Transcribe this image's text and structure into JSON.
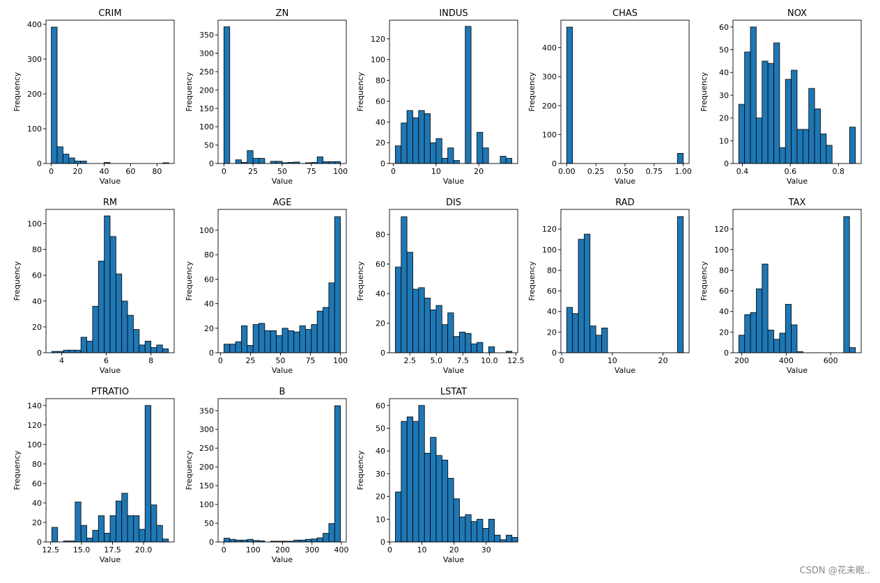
{
  "figure": {
    "bar_color": "#1f77b4",
    "edge_color": "#000000",
    "watermark": "CSDN @花未眠.."
  },
  "chart_data": [
    {
      "type": "bar",
      "title": "CRIM",
      "xlabel": "Value",
      "ylabel": "Frequency",
      "bin_start": 0.006,
      "bin_width": 4.445,
      "values": [
        392,
        48,
        27,
        16,
        7,
        7,
        0,
        0,
        0,
        3,
        0,
        0,
        0,
        0,
        0,
        0,
        0,
        0,
        0,
        2
      ],
      "xlim": [
        -4,
        93
      ],
      "ylim": [
        0,
        412
      ],
      "xticks": [
        0,
        20,
        40,
        60,
        80
      ],
      "yticks": [
        0,
        100,
        200,
        300,
        400
      ]
    },
    {
      "type": "bar",
      "title": "ZN",
      "xlabel": "Value",
      "ylabel": "Frequency",
      "bin_start": 0,
      "bin_width": 5,
      "values": [
        372,
        0,
        10,
        3,
        35,
        14,
        14,
        0,
        6,
        6,
        2,
        3,
        4,
        0,
        2,
        3,
        18,
        5,
        5,
        5
      ],
      "xlim": [
        -5,
        105
      ],
      "ylim": [
        0,
        390
      ],
      "xticks": [
        0,
        25,
        50,
        75,
        100
      ],
      "yticks": [
        0,
        50,
        100,
        150,
        200,
        250,
        300,
        350
      ]
    },
    {
      "type": "bar",
      "title": "INDUS",
      "xlabel": "Value",
      "ylabel": "Frequency",
      "bin_start": 0.46,
      "bin_width": 1.364,
      "values": [
        17,
        39,
        51,
        44,
        51,
        48,
        20,
        24,
        5,
        15,
        3,
        0,
        132,
        0,
        30,
        15,
        0,
        0,
        7,
        5
      ],
      "xlim": [
        -0.9,
        29.1
      ],
      "ylim": [
        0,
        138
      ],
      "xticks": [
        0,
        10,
        20
      ],
      "yticks": [
        0,
        20,
        40,
        60,
        80,
        100,
        120
      ]
    },
    {
      "type": "bar",
      "title": "CHAS",
      "xlabel": "Value",
      "ylabel": "Frequency",
      "bin_start": 0,
      "bin_width": 0.05,
      "values": [
        471,
        0,
        0,
        0,
        0,
        0,
        0,
        0,
        0,
        0,
        0,
        0,
        0,
        0,
        0,
        0,
        0,
        0,
        0,
        35
      ],
      "xlim": [
        -0.05,
        1.05
      ],
      "ylim": [
        0,
        495
      ],
      "xticks": [
        0,
        0.25,
        0.5,
        0.75,
        1
      ],
      "xticklabels": [
        "0.00",
        "0.25",
        "0.50",
        "0.75",
        "1.00"
      ],
      "yticks": [
        0,
        100,
        200,
        300,
        400
      ]
    },
    {
      "type": "bar",
      "title": "NOX",
      "xlabel": "Value",
      "ylabel": "Frequency",
      "bin_start": 0.385,
      "bin_width": 0.0243,
      "values": [
        26,
        49,
        60,
        20,
        45,
        44,
        53,
        7,
        37,
        41,
        15,
        15,
        33,
        24,
        13,
        8,
        0,
        0,
        0,
        16
      ],
      "xlim": [
        0.361,
        0.895
      ],
      "ylim": [
        0,
        63
      ],
      "xticks": [
        0.4,
        0.6,
        0.8
      ],
      "xticklabels": [
        "0.4",
        "0.6",
        "0.8"
      ],
      "yticks": [
        0,
        10,
        20,
        30,
        40,
        50,
        60
      ]
    },
    {
      "type": "bar",
      "title": "RM",
      "xlabel": "Value",
      "ylabel": "Frequency",
      "bin_start": 3.561,
      "bin_width": 0.2609,
      "values": [
        1,
        1,
        2,
        2,
        2,
        12,
        9,
        36,
        71,
        106,
        90,
        61,
        40,
        29,
        18,
        6,
        9,
        4,
        6,
        3
      ],
      "xlim": [
        3.3,
        9.04
      ],
      "ylim": [
        0,
        111
      ],
      "xticks": [
        4,
        6,
        8
      ],
      "yticks": [
        0,
        20,
        40,
        60,
        80,
        100
      ]
    },
    {
      "type": "bar",
      "title": "AGE",
      "xlabel": "Value",
      "ylabel": "Frequency",
      "bin_start": 2.9,
      "bin_width": 4.855,
      "values": [
        7,
        7,
        9,
        22,
        6,
        23,
        24,
        18,
        18,
        14,
        20,
        18,
        17,
        22,
        19,
        23,
        34,
        37,
        57,
        111
      ],
      "xlim": [
        -1.96,
        104.86
      ],
      "ylim": [
        0,
        117
      ],
      "xticks": [
        0,
        25,
        50,
        75,
        100
      ],
      "yticks": [
        0,
        20,
        40,
        60,
        80,
        100
      ]
    },
    {
      "type": "bar",
      "title": "DIS",
      "xlabel": "Value",
      "ylabel": "Frequency",
      "bin_start": 1.13,
      "bin_width": 0.5498,
      "values": [
        58,
        92,
        68,
        43,
        44,
        37,
        29,
        32,
        19,
        27,
        11,
        14,
        13,
        6,
        7,
        0,
        4,
        0,
        0,
        1
      ],
      "xlim": [
        0.58,
        12.67
      ],
      "ylim": [
        0,
        97
      ],
      "xticks": [
        2.5,
        5,
        7.5,
        10,
        12.5
      ],
      "xticklabels": [
        "2.5",
        "5.0",
        "7.5",
        "10.0",
        "12.5"
      ],
      "yticks": [
        0,
        20,
        40,
        60,
        80
      ]
    },
    {
      "type": "bar",
      "title": "RAD",
      "xlabel": "Value",
      "ylabel": "Frequency",
      "bin_start": 1,
      "bin_width": 1.15,
      "values": [
        44,
        38,
        110,
        115,
        26,
        17,
        24,
        0,
        0,
        0,
        0,
        0,
        0,
        0,
        0,
        0,
        0,
        0,
        0,
        132
      ],
      "xlim": [
        -0.15,
        25.15
      ],
      "ylim": [
        0,
        139
      ],
      "xticks": [
        0,
        10,
        20
      ],
      "yticks": [
        0,
        20,
        40,
        60,
        80,
        100,
        120
      ]
    },
    {
      "type": "bar",
      "title": "TAX",
      "xlabel": "Value",
      "ylabel": "Frequency",
      "bin_start": 187,
      "bin_width": 26.2,
      "values": [
        17,
        37,
        39,
        62,
        86,
        22,
        13,
        19,
        47,
        27,
        1,
        0,
        0,
        0,
        0,
        0,
        0,
        0,
        132,
        5
      ],
      "xlim": [
        160.8,
        737.2
      ],
      "ylim": [
        0,
        139
      ],
      "xticks": [
        200,
        400,
        600
      ],
      "yticks": [
        0,
        20,
        40,
        60,
        80,
        100,
        120
      ]
    },
    {
      "type": "bar",
      "title": "PTRATIO",
      "xlabel": "Value",
      "ylabel": "Frequency",
      "bin_start": 12.6,
      "bin_width": 0.47,
      "values": [
        15,
        0,
        1,
        1,
        41,
        17,
        4,
        12,
        27,
        9,
        27,
        42,
        50,
        27,
        27,
        13,
        140,
        38,
        17,
        3
      ],
      "xlim": [
        12.13,
        22.47
      ],
      "ylim": [
        0,
        147
      ],
      "xticks": [
        12.5,
        15,
        17.5,
        20
      ],
      "xticklabels": [
        "12.5",
        "15.0",
        "17.5",
        "20.0"
      ],
      "yticks": [
        0,
        20,
        40,
        60,
        80,
        100,
        120,
        140
      ]
    },
    {
      "type": "bar",
      "title": "B",
      "xlabel": "Value",
      "ylabel": "Frequency",
      "bin_start": 0.32,
      "bin_width": 19.83,
      "values": [
        10,
        7,
        5,
        5,
        7,
        4,
        3,
        0,
        2,
        2,
        2,
        2,
        5,
        5,
        7,
        8,
        11,
        23,
        49,
        363
      ],
      "xlim": [
        -19.5,
        416.7
      ],
      "ylim": [
        0,
        382
      ],
      "xticks": [
        0,
        100,
        200,
        300,
        400
      ],
      "yticks": [
        0,
        50,
        100,
        150,
        200,
        250,
        300,
        350
      ]
    },
    {
      "type": "bar",
      "title": "LSTAT",
      "xlabel": "Value",
      "ylabel": "Frequency",
      "bin_start": 1.73,
      "bin_width": 1.8145,
      "values": [
        22,
        53,
        55,
        53,
        60,
        39,
        46,
        38,
        36,
        28,
        19,
        11,
        12,
        9,
        10,
        6,
        10,
        3,
        1,
        3,
        2
      ],
      "xlim": [
        -0.1,
        39.8
      ],
      "ylim": [
        0,
        63
      ],
      "xticks": [
        0,
        10,
        20,
        30
      ],
      "yticks": [
        0,
        10,
        20,
        30,
        40,
        50,
        60
      ]
    }
  ]
}
